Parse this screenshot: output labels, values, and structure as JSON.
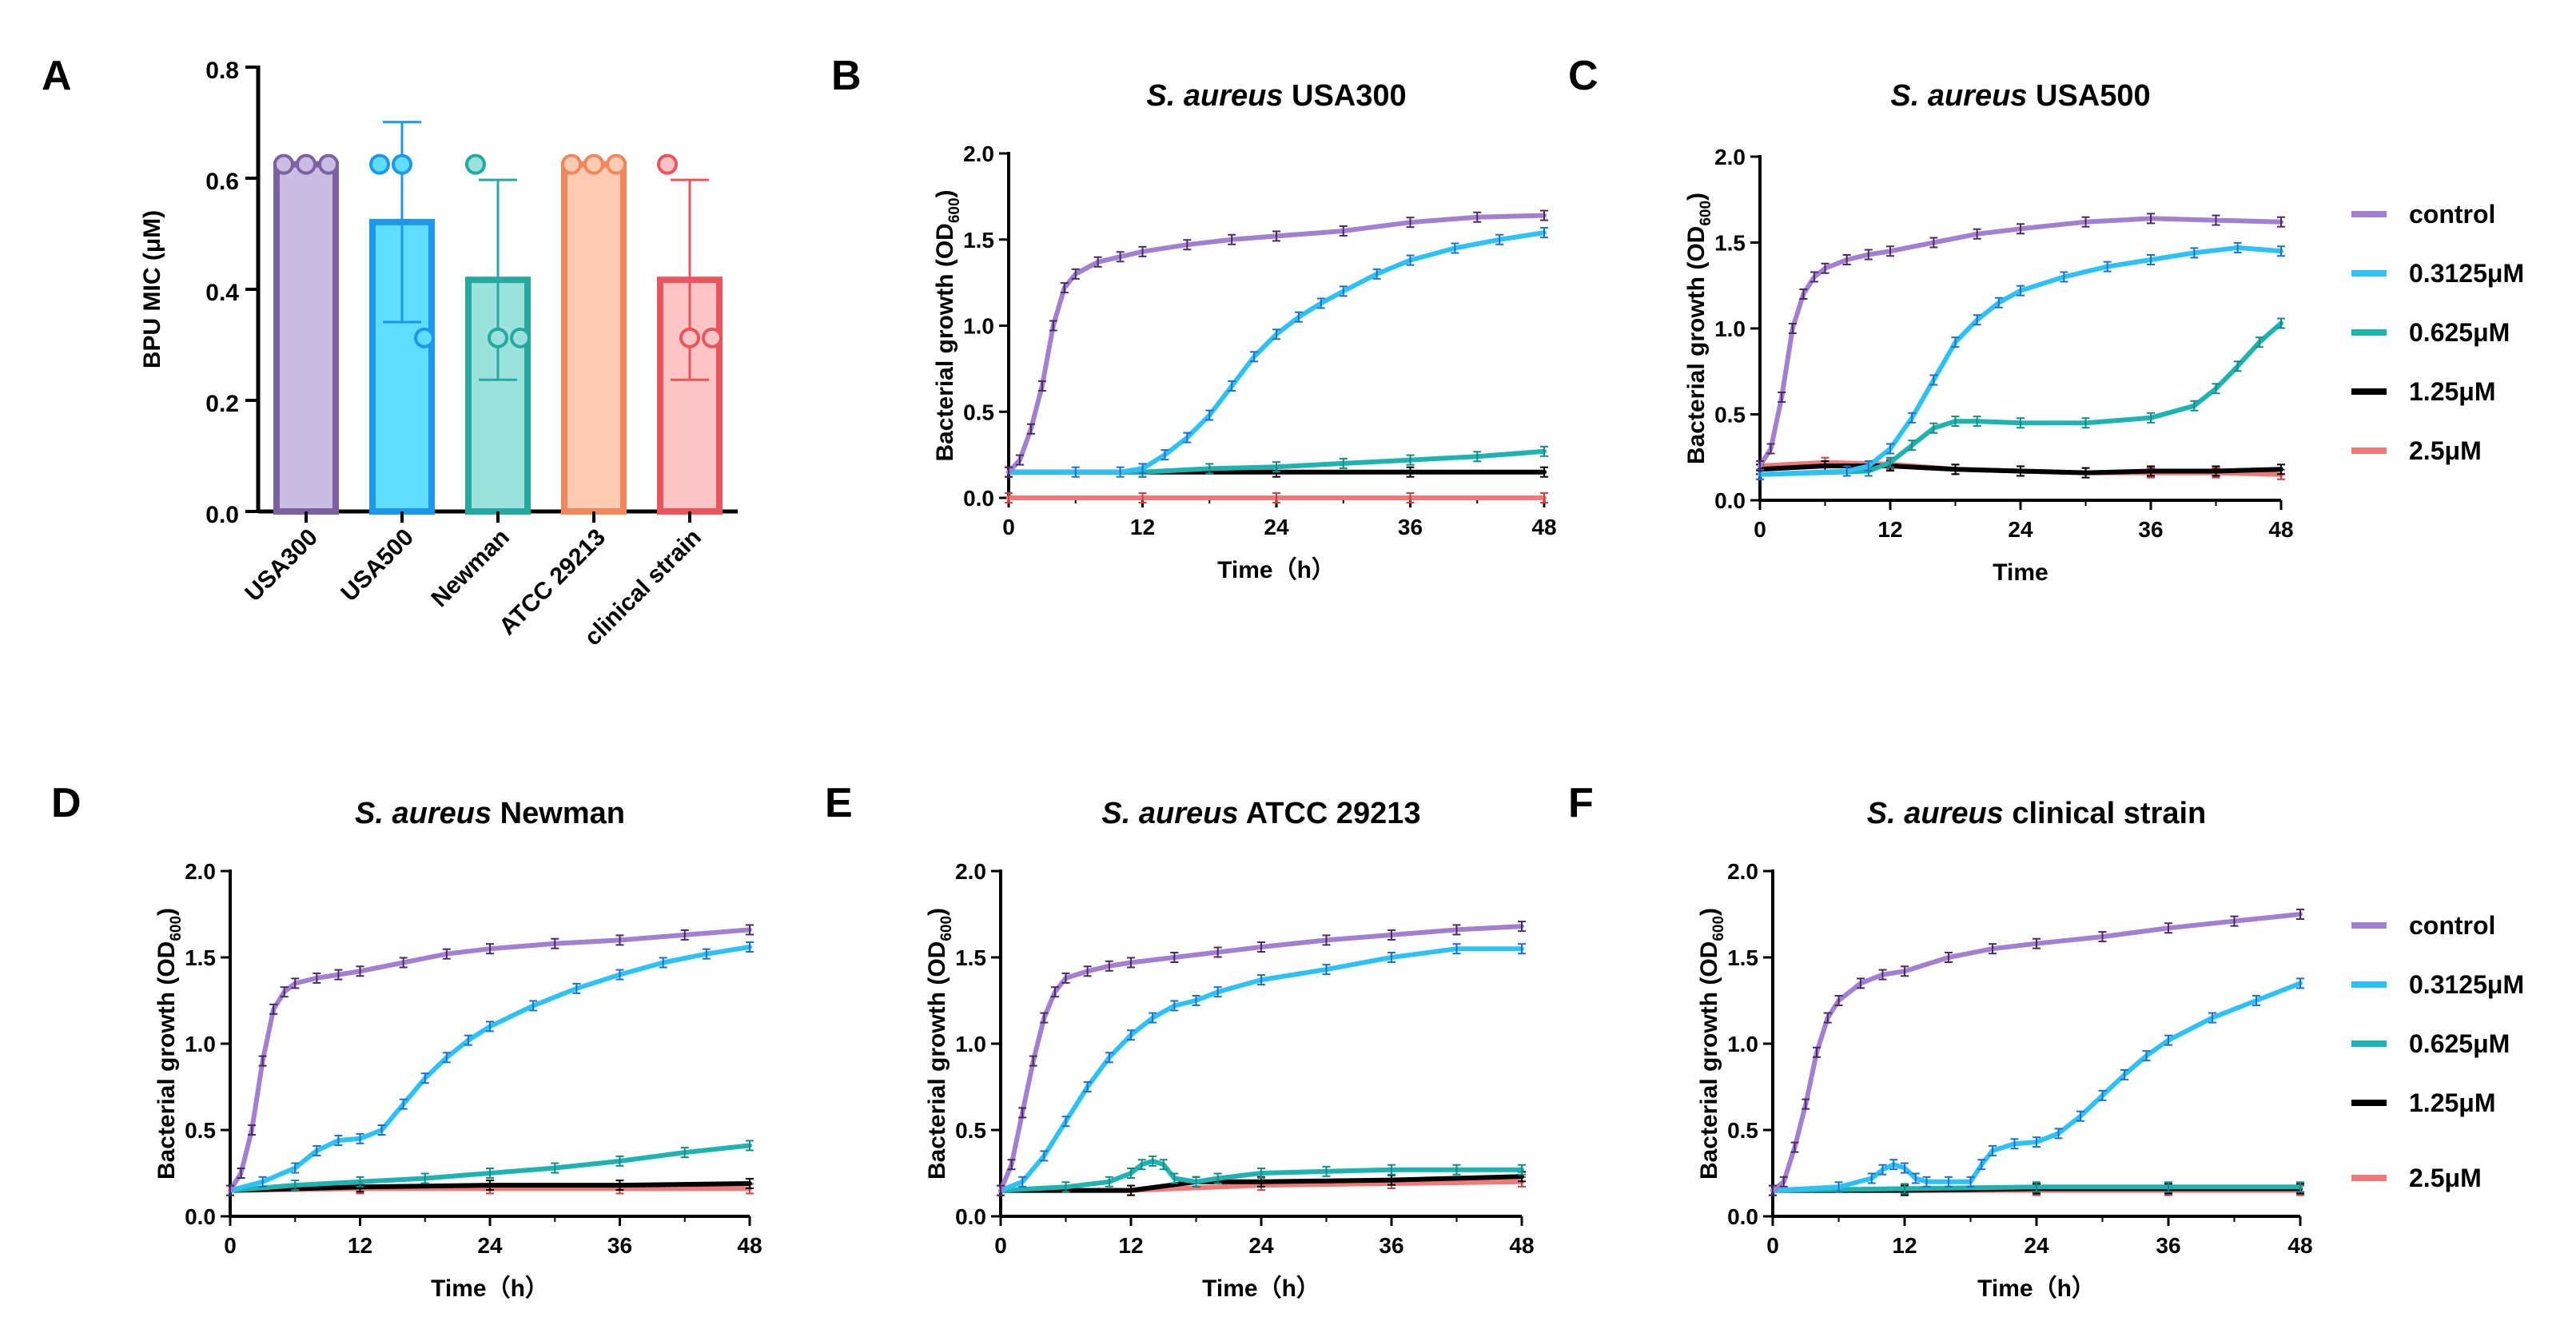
{
  "chart_data": [
    {
      "id": "A",
      "type": "bar",
      "panel_letter": "A",
      "ylabel": "BPU MIC (μM)",
      "ylim": [
        0,
        0.8
      ],
      "yticks": [
        "0.0",
        "0.2",
        "0.4",
        "0.6",
        "0.8"
      ],
      "categories": [
        "USA300",
        "USA500",
        "Newman",
        "ATCC 29213",
        "clinical strain"
      ],
      "values": [
        0.625,
        0.521,
        0.417,
        0.625,
        0.417
      ],
      "errors": [
        0,
        0.18,
        0.18,
        0,
        0.18
      ],
      "points": [
        [
          0.625,
          0.625,
          0.625
        ],
        [
          0.625,
          0.625,
          0.3125
        ],
        [
          0.625,
          0.3125,
          0.3125
        ],
        [
          0.625,
          0.625,
          0.625
        ],
        [
          0.625,
          0.3125,
          0.3125
        ]
      ],
      "colors": [
        "#7a62a3",
        "#1d98e8",
        "#26a89e",
        "#f0875a",
        "#e8555c"
      ],
      "fills": [
        "#cbbde2",
        "#5fdcff",
        "#9be2df",
        "#ffcbb3",
        "#ffc4c4"
      ]
    },
    {
      "id": "B",
      "type": "line",
      "panel_letter": "B",
      "title_italic": "S. aureus",
      "title_rest": " USA300",
      "xlabel": "Time（h）",
      "ylabel_main": "Bacterial growth (OD",
      "ylabel_sub": "600",
      "ylabel_end": ")",
      "xticks": [
        "0",
        "12",
        "24",
        "36",
        "48"
      ],
      "yticks": [
        "0.0",
        "0.5",
        "1.0",
        "1.5",
        "2.0"
      ],
      "xlim": [
        0,
        48
      ],
      "ylim": [
        0,
        2.0
      ],
      "series": [
        {
          "name": "control",
          "x": [
            0,
            1,
            2,
            3,
            4,
            5,
            6,
            8,
            10,
            12,
            16,
            20,
            24,
            30,
            36,
            42,
            48
          ],
          "values": [
            0.15,
            0.22,
            0.4,
            0.65,
            1.0,
            1.22,
            1.3,
            1.37,
            1.4,
            1.43,
            1.47,
            1.5,
            1.52,
            1.55,
            1.6,
            1.63,
            1.64
          ]
        },
        {
          "name": "0.3125μM",
          "x": [
            0,
            6,
            10,
            12,
            14,
            16,
            18,
            20,
            22,
            24,
            26,
            28,
            30,
            33,
            36,
            40,
            44,
            48
          ],
          "values": [
            0.15,
            0.15,
            0.15,
            0.17,
            0.25,
            0.35,
            0.48,
            0.65,
            0.82,
            0.95,
            1.05,
            1.13,
            1.2,
            1.3,
            1.38,
            1.45,
            1.5,
            1.54
          ]
        },
        {
          "name": "0.625μM",
          "x": [
            0,
            12,
            18,
            24,
            30,
            36,
            42,
            48
          ],
          "values": [
            0.15,
            0.15,
            0.17,
            0.18,
            0.2,
            0.22,
            0.24,
            0.27
          ]
        },
        {
          "name": "1.25μM",
          "x": [
            0,
            12,
            24,
            36,
            48
          ],
          "values": [
            0.15,
            0.15,
            0.15,
            0.15,
            0.15
          ]
        },
        {
          "name": "2.5μM",
          "x": [
            0,
            12,
            24,
            36,
            48
          ],
          "values": [
            0.0,
            0.0,
            0.0,
            0.0,
            0.0
          ]
        }
      ]
    },
    {
      "id": "C",
      "type": "line",
      "panel_letter": "C",
      "title_italic": "S. aureus",
      "title_rest": " USA500",
      "xlabel": "Time",
      "ylabel_main": "Bacterial growth (OD",
      "ylabel_sub": "600",
      "ylabel_end": ")",
      "xticks": [
        "0",
        "12",
        "24",
        "36",
        "48"
      ],
      "yticks": [
        "0.0",
        "0.5",
        "1.0",
        "1.5",
        "2.0"
      ],
      "xlim": [
        0,
        48
      ],
      "ylim": [
        0,
        2.0
      ],
      "series": [
        {
          "name": "control",
          "x": [
            0,
            1,
            2,
            3,
            4,
            5,
            6,
            8,
            10,
            12,
            16,
            20,
            24,
            30,
            36,
            42,
            48
          ],
          "values": [
            0.2,
            0.3,
            0.6,
            1.0,
            1.2,
            1.3,
            1.35,
            1.4,
            1.43,
            1.45,
            1.5,
            1.55,
            1.58,
            1.62,
            1.64,
            1.63,
            1.62
          ]
        },
        {
          "name": "0.3125μM",
          "x": [
            0,
            8,
            10,
            12,
            14,
            16,
            18,
            20,
            22,
            24,
            28,
            32,
            36,
            40,
            44,
            48
          ],
          "values": [
            0.15,
            0.17,
            0.2,
            0.3,
            0.48,
            0.7,
            0.92,
            1.05,
            1.15,
            1.22,
            1.3,
            1.36,
            1.4,
            1.44,
            1.47,
            1.45
          ]
        },
        {
          "name": "0.625μM",
          "x": [
            0,
            10,
            12,
            14,
            16,
            18,
            20,
            24,
            30,
            36,
            40,
            42,
            44,
            46,
            48
          ],
          "values": [
            0.15,
            0.17,
            0.22,
            0.32,
            0.42,
            0.46,
            0.46,
            0.45,
            0.45,
            0.48,
            0.55,
            0.65,
            0.78,
            0.92,
            1.03
          ]
        },
        {
          "name": "1.25μM",
          "x": [
            0,
            6,
            12,
            18,
            24,
            30,
            36,
            42,
            48
          ],
          "values": [
            0.18,
            0.2,
            0.2,
            0.18,
            0.17,
            0.16,
            0.17,
            0.17,
            0.18
          ]
        },
        {
          "name": "2.5μM",
          "x": [
            0,
            6,
            12,
            18,
            24,
            30,
            36,
            42,
            48
          ],
          "values": [
            0.2,
            0.22,
            0.21,
            0.18,
            0.17,
            0.16,
            0.16,
            0.16,
            0.15
          ]
        }
      ]
    },
    {
      "id": "D",
      "type": "line",
      "panel_letter": "D",
      "title_italic": "S. aureus",
      "title_rest": " Newman",
      "xlabel": "Time（h）",
      "ylabel_main": "Bacterial growth (OD",
      "ylabel_sub": "600",
      "ylabel_end": ")",
      "xticks": [
        "0",
        "12",
        "24",
        "36",
        "48"
      ],
      "yticks": [
        "0.0",
        "0.5",
        "1.0",
        "1.5",
        "2.0"
      ],
      "xlim": [
        0,
        48
      ],
      "ylim": [
        0,
        2.0
      ],
      "series": [
        {
          "name": "control",
          "x": [
            0,
            1,
            2,
            3,
            4,
            5,
            6,
            8,
            10,
            12,
            16,
            20,
            24,
            30,
            36,
            42,
            48
          ],
          "values": [
            0.15,
            0.25,
            0.5,
            0.9,
            1.2,
            1.3,
            1.35,
            1.38,
            1.4,
            1.42,
            1.47,
            1.52,
            1.55,
            1.58,
            1.6,
            1.63,
            1.66
          ]
        },
        {
          "name": "0.3125μM",
          "x": [
            0,
            3,
            6,
            8,
            10,
            12,
            14,
            16,
            18,
            20,
            22,
            24,
            28,
            32,
            36,
            40,
            44,
            48
          ],
          "values": [
            0.15,
            0.2,
            0.28,
            0.38,
            0.44,
            0.45,
            0.5,
            0.65,
            0.8,
            0.92,
            1.02,
            1.1,
            1.22,
            1.32,
            1.4,
            1.47,
            1.52,
            1.56
          ]
        },
        {
          "name": "0.625μM",
          "x": [
            0,
            6,
            12,
            18,
            24,
            30,
            36,
            42,
            48
          ],
          "values": [
            0.15,
            0.18,
            0.2,
            0.22,
            0.25,
            0.28,
            0.32,
            0.37,
            0.41
          ]
        },
        {
          "name": "1.25μM",
          "x": [
            0,
            12,
            24,
            36,
            48
          ],
          "values": [
            0.15,
            0.17,
            0.18,
            0.18,
            0.19
          ]
        },
        {
          "name": "2.5μM",
          "x": [
            0,
            12,
            24,
            36,
            48
          ],
          "values": [
            0.15,
            0.16,
            0.16,
            0.16,
            0.16
          ]
        }
      ]
    },
    {
      "id": "E",
      "type": "line",
      "panel_letter": "E",
      "title_italic": "S. aureus",
      "title_rest": " ATCC 29213",
      "xlabel": "Time（h）",
      "ylabel_main": "Bacterial growth (OD",
      "ylabel_sub": "600",
      "ylabel_end": ")",
      "xticks": [
        "0",
        "12",
        "24",
        "36",
        "48"
      ],
      "yticks": [
        "0.0",
        "0.5",
        "1.0",
        "1.5",
        "2.0"
      ],
      "xlim": [
        0,
        48
      ],
      "ylim": [
        0,
        2.0
      ],
      "series": [
        {
          "name": "control",
          "x": [
            0,
            1,
            2,
            3,
            4,
            5,
            6,
            8,
            10,
            12,
            16,
            20,
            24,
            30,
            36,
            42,
            48
          ],
          "values": [
            0.15,
            0.3,
            0.6,
            0.9,
            1.15,
            1.3,
            1.38,
            1.42,
            1.45,
            1.47,
            1.5,
            1.53,
            1.56,
            1.6,
            1.63,
            1.66,
            1.68
          ]
        },
        {
          "name": "0.3125μM",
          "x": [
            0,
            2,
            4,
            6,
            8,
            10,
            12,
            14,
            16,
            18,
            20,
            24,
            30,
            36,
            42,
            48
          ],
          "values": [
            0.15,
            0.2,
            0.35,
            0.55,
            0.75,
            0.92,
            1.05,
            1.15,
            1.22,
            1.25,
            1.3,
            1.37,
            1.43,
            1.5,
            1.55,
            1.55
          ]
        },
        {
          "name": "0.625μM",
          "x": [
            0,
            6,
            10,
            12,
            13,
            14,
            15,
            16,
            18,
            20,
            24,
            30,
            36,
            42,
            48
          ],
          "values": [
            0.15,
            0.17,
            0.2,
            0.25,
            0.3,
            0.32,
            0.3,
            0.22,
            0.2,
            0.22,
            0.25,
            0.26,
            0.27,
            0.27,
            0.27
          ]
        },
        {
          "name": "1.25μM",
          "x": [
            0,
            12,
            18,
            24,
            36,
            48
          ],
          "values": [
            0.15,
            0.15,
            0.2,
            0.2,
            0.21,
            0.23
          ]
        },
        {
          "name": "2.5μM",
          "x": [
            0,
            12,
            24,
            36,
            48
          ],
          "values": [
            0.15,
            0.15,
            0.18,
            0.19,
            0.2
          ]
        }
      ]
    },
    {
      "id": "F",
      "type": "line",
      "panel_letter": "F",
      "title_italic": "S. aureus",
      "title_rest": " clinical strain",
      "xlabel": "Time（h）",
      "ylabel_main": "Bacterial growth (OD",
      "ylabel_sub": "600",
      "ylabel_end": ")",
      "xticks": [
        "0",
        "12",
        "24",
        "36",
        "48"
      ],
      "yticks": [
        "0.0",
        "0.5",
        "1.0",
        "1.5",
        "2.0"
      ],
      "xlim": [
        0,
        48
      ],
      "ylim": [
        0,
        2.0
      ],
      "series": [
        {
          "name": "control",
          "x": [
            0,
            1,
            2,
            3,
            4,
            5,
            6,
            8,
            10,
            12,
            16,
            20,
            24,
            30,
            36,
            42,
            48
          ],
          "values": [
            0.15,
            0.2,
            0.4,
            0.65,
            0.95,
            1.15,
            1.25,
            1.35,
            1.4,
            1.42,
            1.5,
            1.55,
            1.58,
            1.62,
            1.67,
            1.71,
            1.75
          ]
        },
        {
          "name": "0.3125μM",
          "x": [
            0,
            6,
            9,
            10,
            11,
            12,
            13,
            14,
            16,
            18,
            19,
            20,
            22,
            24,
            26,
            28,
            30,
            32,
            34,
            36,
            40,
            44,
            48
          ],
          "values": [
            0.15,
            0.17,
            0.22,
            0.27,
            0.3,
            0.28,
            0.22,
            0.2,
            0.2,
            0.2,
            0.3,
            0.38,
            0.42,
            0.43,
            0.48,
            0.58,
            0.7,
            0.82,
            0.93,
            1.02,
            1.15,
            1.25,
            1.35
          ]
        },
        {
          "name": "0.625μM",
          "x": [
            0,
            12,
            24,
            36,
            48
          ],
          "values": [
            0.15,
            0.16,
            0.17,
            0.17,
            0.17
          ]
        },
        {
          "name": "1.25μM",
          "x": [
            0,
            12,
            24,
            36,
            48
          ],
          "values": [
            0.15,
            0.15,
            0.16,
            0.16,
            0.16
          ]
        },
        {
          "name": "2.5μM",
          "x": [
            0,
            12,
            24,
            36,
            48
          ],
          "values": [
            0.15,
            0.15,
            0.15,
            0.15,
            0.15
          ]
        }
      ]
    }
  ],
  "legend": {
    "entries": [
      "control",
      "0.3125μM",
      "0.625μM",
      "1.25μM",
      "2.5μM"
    ],
    "colors": [
      "#a27fd1",
      "#2ec1f5",
      "#1eb3b0",
      "#000000",
      "#f07878"
    ]
  },
  "series_colors": {
    "control": "#a27fd1",
    "0.3125μM": "#2ec1f5",
    "0.625μM": "#1eb3b0",
    "1.25μM": "#000000",
    "2.5μM": "#f07878"
  },
  "errorbar_colors": {
    "control": "#4a2a66",
    "0.3125μM": "#1a6fd0",
    "0.625μM": "#168a85",
    "1.25μM": "#000000",
    "2.5μM": "#d04040"
  }
}
